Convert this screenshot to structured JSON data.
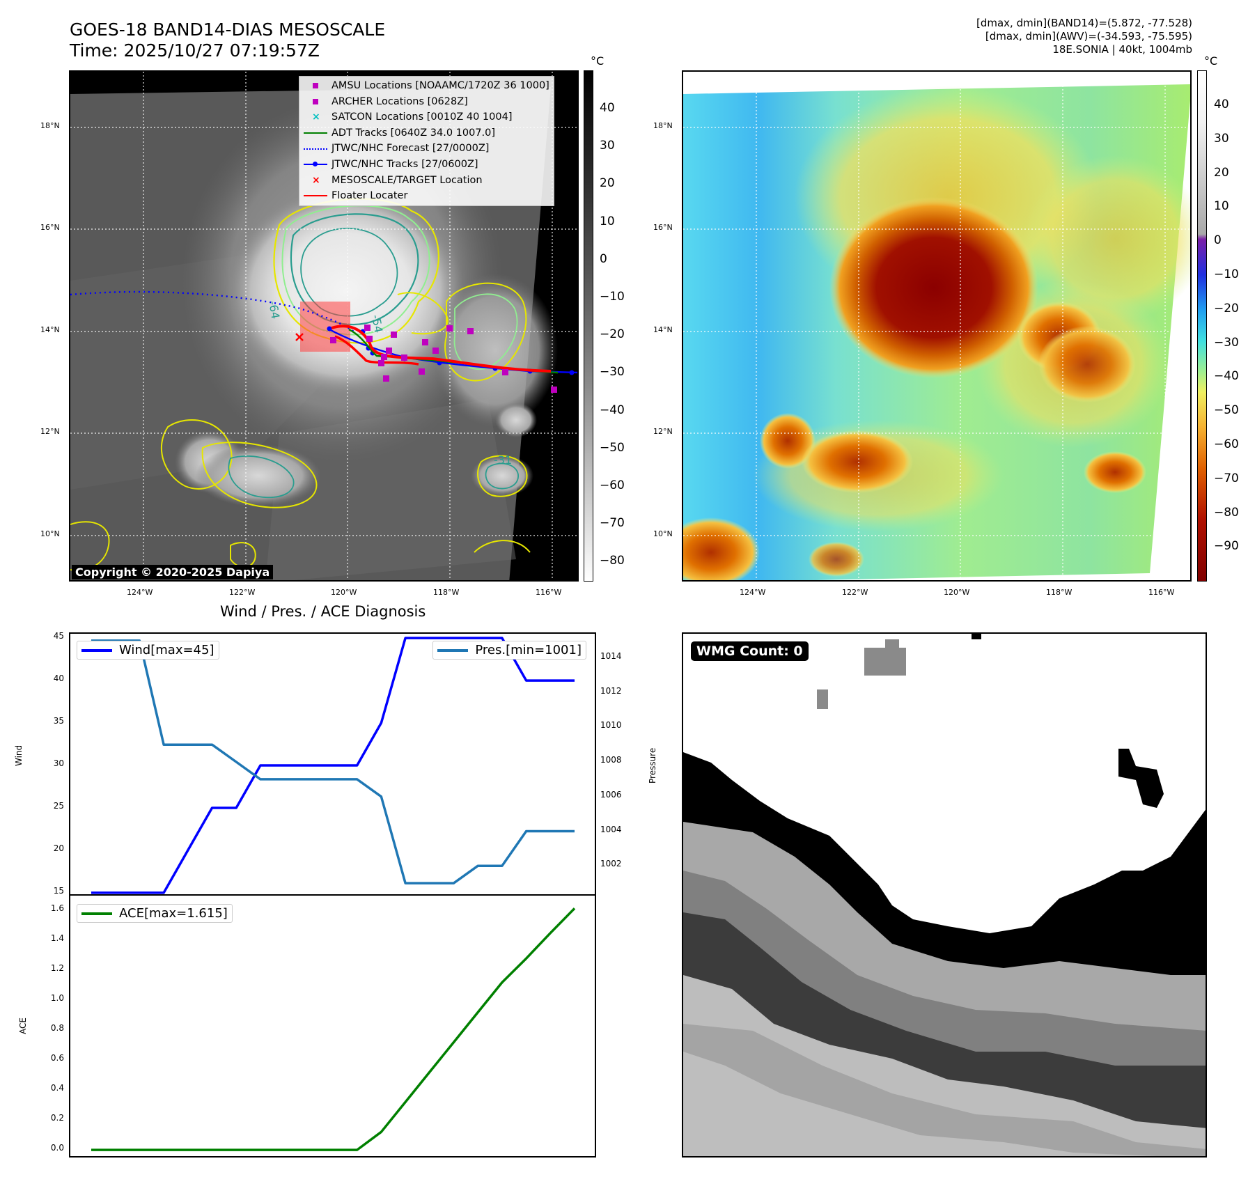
{
  "header": {
    "title_line1": "GOES-18 BAND14-DIAS MESOSCALE",
    "title_line2": "Time: 2025/10/27 07:19:57Z",
    "info_line1": "[dmax, dmin](BAND14)=(5.872, -77.528)",
    "info_line2": "[dmax, dmin](AWV)=(-34.593, -75.595)",
    "info_line3": "18E.SONIA | 40kt, 1004mb"
  },
  "map": {
    "lat_labels": [
      "18°N",
      "16°N",
      "14°N",
      "12°N",
      "10°N"
    ],
    "lon_labels": [
      "124°W",
      "122°W",
      "120°W",
      "118°W",
      "116°W"
    ],
    "copyright": "Copyright © 2020-2025 Dapiya",
    "legend": [
      {
        "label": "AMSU Locations [NOAAMC/1720Z 36 1000]",
        "marker": "square",
        "color": "#bf00bf"
      },
      {
        "label": "ARCHER Locations [0628Z]",
        "marker": "square",
        "color": "#bf00bf"
      },
      {
        "label": "SATCON Locations [0010Z 40 1004]",
        "marker": "x",
        "color": "#00bfbf"
      },
      {
        "label": "ADT Tracks [0640Z 34.0 1007.0]",
        "marker": "line",
        "color": "#008000"
      },
      {
        "label": "JTWC/NHC Forecast [27/0000Z]",
        "marker": "dotted",
        "color": "#0000ff"
      },
      {
        "label": "JTWC/NHC Tracks [27/0600Z]",
        "marker": "line-dot",
        "color": "#0000ff"
      },
      {
        "label": "MESOSCALE/TARGET Location",
        "marker": "x",
        "color": "#ff0000"
      },
      {
        "label": "Floater Locater",
        "marker": "line",
        "color": "#ff0000"
      }
    ],
    "contour_labels": [
      "-64",
      "-54",
      "-31"
    ],
    "colorbar_left": {
      "unit": "°C",
      "ticks": [
        "40",
        "30",
        "20",
        "10",
        "0",
        "−10",
        "−20",
        "−30",
        "−40",
        "−50",
        "−60",
        "−70",
        "−80"
      ]
    },
    "colorbar_right": {
      "unit": "°C",
      "ticks": [
        "40",
        "30",
        "20",
        "10",
        "0",
        "−10",
        "−20",
        "−30",
        "−40",
        "−50",
        "−60",
        "−70",
        "−80",
        "−90"
      ]
    }
  },
  "diagnosis": {
    "title": "Wind / Pres. / ACE Diagnosis",
    "wind_legend": "Wind[max=45]",
    "pres_legend": "Pres.[min=1001]",
    "ace_legend": "ACE[max=1.615]",
    "wind_axis_label": "Wind",
    "pres_axis_label": "Pressure",
    "ace_axis_label": "ACE",
    "wind_ticks": [
      "45",
      "40",
      "35",
      "30",
      "25",
      "20",
      "15"
    ],
    "pres_ticks": [
      "1014",
      "1012",
      "1010",
      "1008",
      "1006",
      "1004",
      "1002"
    ],
    "ace_ticks": [
      "1.6",
      "1.4",
      "1.2",
      "1.0",
      "0.8",
      "0.6",
      "0.4",
      "0.2",
      "0.0"
    ],
    "colors": {
      "wind": "#0000ff",
      "pres": "#1f77b4",
      "ace": "#008000"
    }
  },
  "wmg": {
    "label": "WMG Count: 0"
  },
  "chart_data": [
    {
      "type": "line",
      "title": "Wind / Pres. / ACE Diagnosis",
      "x": [
        0,
        1,
        2,
        3,
        4,
        5,
        6,
        7,
        8,
        9,
        10,
        11,
        12,
        13,
        14,
        15,
        16,
        17,
        18,
        19,
        20
      ],
      "series": [
        {
          "name": "Wind[max=45]",
          "axis": "left",
          "values": [
            15,
            15,
            15,
            15,
            20,
            25,
            25,
            30,
            30,
            30,
            30,
            30,
            35,
            45,
            45,
            45,
            45,
            45,
            40,
            40,
            40
          ]
        },
        {
          "name": "Pres.[min=1001]",
          "axis": "right",
          "values": [
            1015,
            1015,
            1015,
            1009,
            1009,
            1009,
            1008,
            1007,
            1007,
            1007,
            1007,
            1007,
            1006,
            1001,
            1001,
            1001,
            1002,
            1002,
            1004,
            1004,
            1004
          ]
        }
      ],
      "ylabel": "Wind",
      "ylim": [
        14.5,
        45.5
      ],
      "y2label": "Pressure",
      "y2lim": [
        1000.2,
        1015.4
      ]
    },
    {
      "type": "line",
      "x": [
        0,
        1,
        2,
        3,
        4,
        5,
        6,
        7,
        8,
        9,
        10,
        11,
        12,
        13,
        14,
        15,
        16,
        17,
        18,
        19,
        20
      ],
      "series": [
        {
          "name": "ACE[max=1.615]",
          "values": [
            0,
            0,
            0,
            0,
            0,
            0,
            0,
            0,
            0,
            0,
            0,
            0,
            0.12,
            0.32,
            0.52,
            0.72,
            0.92,
            1.12,
            1.28,
            1.45,
            1.615
          ]
        }
      ],
      "ylabel": "ACE",
      "ylim": [
        -0.06,
        1.7
      ]
    }
  ]
}
